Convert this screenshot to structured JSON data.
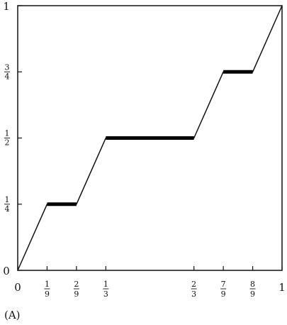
{
  "chart_data": {
    "type": "line",
    "title": "",
    "xlabel": "",
    "ylabel": "",
    "xlim": [
      0,
      1
    ],
    "ylim": [
      0,
      1
    ],
    "grid": false,
    "x_ticks": [
      {
        "value": 0,
        "num": "0",
        "den": ""
      },
      {
        "value": 0.1111,
        "num": "1",
        "den": "9"
      },
      {
        "value": 0.2222,
        "num": "2",
        "den": "9"
      },
      {
        "value": 0.3333,
        "num": "1",
        "den": "3"
      },
      {
        "value": 0.6667,
        "num": "2",
        "den": "3"
      },
      {
        "value": 0.7778,
        "num": "7",
        "den": "9"
      },
      {
        "value": 0.8889,
        "num": "8",
        "den": "9"
      },
      {
        "value": 1,
        "num": "1",
        "den": ""
      }
    ],
    "y_ticks": [
      {
        "value": 0,
        "num": "0",
        "den": ""
      },
      {
        "value": 0.25,
        "num": "1",
        "den": "4"
      },
      {
        "value": 0.5,
        "num": "1",
        "den": "2"
      },
      {
        "value": 0.75,
        "num": "3",
        "den": "4"
      },
      {
        "value": 1,
        "num": "1",
        "den": ""
      }
    ],
    "series": [
      {
        "x": [
          0,
          0.1111,
          0.2222,
          0.3333,
          0.6667,
          0.7778,
          0.8889,
          1
        ],
        "y": [
          0,
          0.25,
          0.25,
          0.5,
          0.5,
          0.75,
          0.75,
          1
        ]
      }
    ],
    "plateaus": [
      {
        "x": [
          0.1111,
          0.2222
        ],
        "y": 0.25
      },
      {
        "x": [
          0.3333,
          0.6667
        ],
        "y": 0.5
      },
      {
        "x": [
          0.7778,
          0.8889
        ],
        "y": 0.75
      }
    ]
  },
  "panel_label": "(A)"
}
